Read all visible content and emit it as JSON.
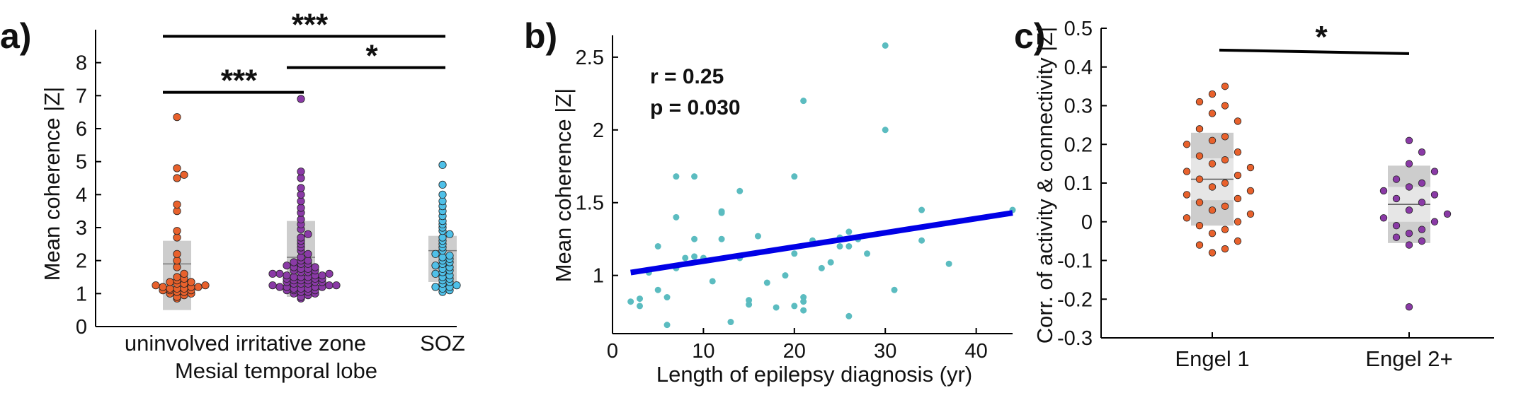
{
  "colors": {
    "uninvolved": "#e8612c",
    "irritative_zone": "#8a3aa6",
    "soz": "#4fc0e8",
    "scatter_points": "#5bbcc0",
    "regression_line": "#0000e6",
    "engel": [
      "#e8612c",
      "#8a3aa6"
    ],
    "box_dark": "#cdcdcd",
    "box_light": "#e6e6e6"
  },
  "chart_data": [
    {
      "panel": "a)",
      "type": "scatter",
      "style": "swarm with interquartile box and median line",
      "xlabel": "Mesial temporal lobe",
      "ylabel": "Mean coherence |Z|",
      "categories": [
        "uninvolved",
        "irritative zone",
        "SOZ"
      ],
      "ylim": [
        0,
        9
      ],
      "yticks": [
        "0",
        "1",
        "2",
        "3",
        "4",
        "5",
        "6",
        "7",
        "8"
      ],
      "series": [
        {
          "values": [
            0.85,
            0.9,
            0.95,
            1.0,
            1.0,
            1.05,
            1.05,
            1.1,
            1.1,
            1.1,
            1.15,
            1.15,
            1.15,
            1.2,
            1.2,
            1.2,
            1.25,
            1.25,
            1.3,
            1.3,
            1.35,
            1.35,
            1.4,
            1.45,
            1.5,
            1.6,
            1.8,
            2.0,
            2.2,
            2.7,
            2.9,
            3.5,
            3.7,
            4.5,
            4.6,
            4.8,
            6.35
          ]
        },
        {
          "values": [
            0.85,
            0.9,
            0.95,
            1.0,
            1.0,
            1.05,
            1.05,
            1.1,
            1.1,
            1.1,
            1.15,
            1.15,
            1.15,
            1.2,
            1.2,
            1.2,
            1.2,
            1.25,
            1.25,
            1.25,
            1.3,
            1.3,
            1.3,
            1.35,
            1.35,
            1.35,
            1.4,
            1.4,
            1.4,
            1.45,
            1.45,
            1.45,
            1.5,
            1.5,
            1.5,
            1.55,
            1.55,
            1.55,
            1.6,
            1.6,
            1.6,
            1.65,
            1.65,
            1.7,
            1.7,
            1.75,
            1.75,
            1.8,
            1.8,
            1.85,
            1.9,
            1.9,
            1.95,
            2.0,
            2.0,
            2.1,
            2.2,
            2.3,
            2.4,
            2.5,
            2.6,
            2.7,
            2.8,
            2.95,
            3.1,
            3.25,
            3.45,
            3.6,
            3.8,
            4.0,
            4.2,
            4.5,
            4.7,
            6.9
          ]
        },
        {
          "values": [
            1.05,
            1.1,
            1.15,
            1.2,
            1.2,
            1.25,
            1.3,
            1.35,
            1.4,
            1.45,
            1.5,
            1.55,
            1.6,
            1.65,
            1.7,
            1.75,
            1.8,
            1.85,
            1.9,
            1.95,
            2.0,
            2.05,
            2.1,
            2.15,
            2.2,
            2.3,
            2.4,
            2.5,
            2.6,
            2.7,
            2.8,
            2.9,
            3.0,
            3.1,
            3.2,
            3.35,
            3.5,
            3.65,
            3.8,
            4.0,
            4.3,
            4.9
          ]
        }
      ],
      "boxes": [
        {
          "q1": 0.5,
          "median": 1.9,
          "q3": 2.6
        },
        {
          "q1": 0.9,
          "median": 2.1,
          "q3": 3.2
        },
        {
          "q1": 1.35,
          "median": 2.3,
          "q3": 2.75
        }
      ],
      "significance": [
        {
          "between": [
            "uninvolved",
            "SOZ"
          ],
          "label": "***",
          "y": 8.8
        },
        {
          "between": [
            "irritative zone",
            "SOZ"
          ],
          "label": "*",
          "y": 7.85
        },
        {
          "between": [
            "uninvolved",
            "irritative zone"
          ],
          "label": "***",
          "y": 7.1
        }
      ]
    },
    {
      "panel": "b)",
      "type": "scatter",
      "xlabel": "Length of epilepsy diagnosis (yr)",
      "ylabel": "Mean coherence |Z|",
      "xlim": [
        0,
        44
      ],
      "ylim": [
        0.6,
        2.65
      ],
      "xticks": [
        "0",
        "10",
        "20",
        "30",
        "40"
      ],
      "yticks": [
        "1",
        "1.5",
        "2",
        "2.5"
      ],
      "annotations": [
        "r = 0.25",
        "p = 0.030"
      ],
      "points": [
        [
          2,
          0.82
        ],
        [
          3,
          0.84
        ],
        [
          3,
          0.79
        ],
        [
          4,
          1.02
        ],
        [
          5,
          0.9
        ],
        [
          5,
          1.2
        ],
        [
          6,
          0.85
        ],
        [
          6,
          0.66
        ],
        [
          7,
          1.05
        ],
        [
          7,
          1.4
        ],
        [
          7,
          1.68
        ],
        [
          8,
          1.12
        ],
        [
          9,
          1.68
        ],
        [
          9,
          1.25
        ],
        [
          9,
          1.13
        ],
        [
          10,
          1.12
        ],
        [
          11,
          0.96
        ],
        [
          12,
          1.43
        ],
        [
          12,
          1.44
        ],
        [
          12,
          1.25
        ],
        [
          13,
          0.68
        ],
        [
          14,
          1.12
        ],
        [
          14,
          1.58
        ],
        [
          15,
          0.8
        ],
        [
          15,
          0.83
        ],
        [
          16,
          1.27
        ],
        [
          17,
          0.95
        ],
        [
          18,
          0.78
        ],
        [
          19,
          1.0
        ],
        [
          20,
          1.68
        ],
        [
          20,
          1.15
        ],
        [
          20,
          0.79
        ],
        [
          21,
          2.2
        ],
        [
          21,
          0.85
        ],
        [
          21,
          0.82
        ],
        [
          21,
          0.76
        ],
        [
          22,
          1.24
        ],
        [
          22,
          1.22
        ],
        [
          23,
          1.05
        ],
        [
          24,
          1.09
        ],
        [
          25,
          1.2
        ],
        [
          25,
          1.26
        ],
        [
          26,
          1.3
        ],
        [
          26,
          1.2
        ],
        [
          26,
          0.72
        ],
        [
          27,
          1.25
        ],
        [
          28,
          1.15
        ],
        [
          30,
          2.58
        ],
        [
          30,
          2.0
        ],
        [
          31,
          0.9
        ],
        [
          34,
          1.45
        ],
        [
          34,
          1.24
        ],
        [
          37,
          1.08
        ],
        [
          44,
          1.45
        ]
      ],
      "regression_line": {
        "x": [
          2,
          44
        ],
        "y": [
          1.02,
          1.43
        ]
      }
    },
    {
      "panel": "c)",
      "type": "scatter",
      "style": "swarm with interquartile box and median line",
      "ylabel": "Corr. of activity & connectivity |Z|",
      "categories": [
        "Engel 1",
        "Engel 2+"
      ],
      "ylim": [
        -0.3,
        0.5
      ],
      "yticks": [
        "-0.3",
        "-0.2",
        "-0.1",
        "0",
        "0.1",
        "0.2",
        "0.3",
        "0.4",
        "0.5"
      ],
      "series": [
        {
          "values": [
            -0.08,
            -0.07,
            -0.06,
            -0.05,
            -0.03,
            -0.02,
            -0.01,
            0.0,
            0.01,
            0.02,
            0.03,
            0.04,
            0.05,
            0.06,
            0.07,
            0.08,
            0.09,
            0.1,
            0.11,
            0.12,
            0.13,
            0.14,
            0.15,
            0.16,
            0.17,
            0.18,
            0.2,
            0.21,
            0.22,
            0.24,
            0.26,
            0.28,
            0.3,
            0.31,
            0.33,
            0.35
          ]
        },
        {
          "values": [
            -0.22,
            -0.06,
            -0.05,
            -0.04,
            -0.03,
            -0.02,
            -0.01,
            0.0,
            0.01,
            0.02,
            0.03,
            0.05,
            0.06,
            0.07,
            0.08,
            0.09,
            0.1,
            0.11,
            0.13,
            0.15,
            0.18,
            0.21
          ]
        }
      ],
      "boxes": [
        {
          "q1": -0.01,
          "median": 0.11,
          "q3": 0.23
        },
        {
          "q1": -0.055,
          "median": 0.045,
          "q3": 0.145
        }
      ],
      "significance": [
        {
          "between": [
            "Engel 1",
            "Engel 2+"
          ],
          "label": "*",
          "y": 0.44
        }
      ]
    }
  ]
}
